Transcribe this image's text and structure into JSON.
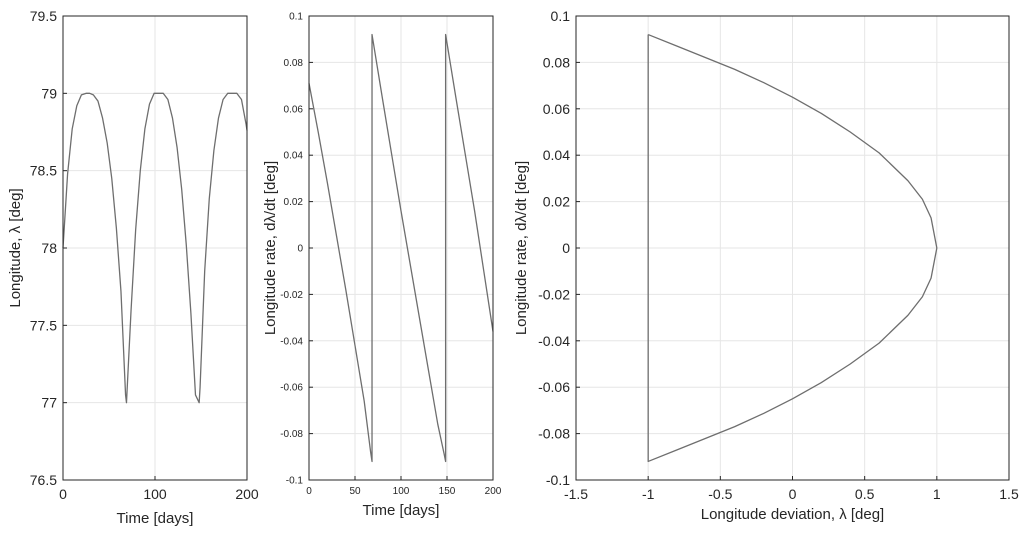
{
  "chart_data": [
    {
      "type": "line",
      "xlabel": "Time [days]",
      "ylabel": "Longitude, λ [deg]",
      "xlim": [
        0,
        200
      ],
      "ylim": [
        76.5,
        79.5
      ],
      "grid": true,
      "xticks": [
        "0",
        "100",
        "200"
      ],
      "yticks": [
        "76.5",
        "77",
        "77.5",
        "78",
        "78.5",
        "79",
        "79.5"
      ],
      "series": [
        {
          "x": [
            0,
            5,
            10,
            15,
            20,
            25,
            29,
            33,
            38,
            43,
            48,
            53,
            58,
            63,
            68,
            69,
            74,
            79,
            84,
            89,
            94,
            99,
            104,
            109,
            114,
            119,
            124,
            129,
            134,
            139,
            144,
            148,
            149,
            154,
            159,
            164,
            169,
            174,
            179,
            184,
            189,
            194,
            199,
            200
          ],
          "y": [
            78.0,
            78.48,
            78.77,
            78.92,
            78.99,
            79.0,
            79.0,
            78.99,
            78.95,
            78.84,
            78.68,
            78.45,
            78.13,
            77.72,
            77.05,
            77.0,
            77.6,
            78.12,
            78.5,
            78.77,
            78.93,
            79.0,
            79.0,
            79.0,
            78.96,
            78.84,
            78.65,
            78.38,
            78.02,
            77.58,
            77.05,
            77.0,
            77.1,
            77.85,
            78.32,
            78.63,
            78.84,
            78.96,
            79.0,
            79.0,
            79.0,
            78.96,
            78.8,
            78.76
          ]
        }
      ]
    },
    {
      "type": "line",
      "xlabel": "Time [days]",
      "ylabel": "Longitude rate, dλ/dt [deg]",
      "xlim": [
        0,
        200
      ],
      "ylim": [
        -0.1,
        0.1
      ],
      "grid": true,
      "xticks": [
        "0",
        "50",
        "100",
        "150",
        "200"
      ],
      "yticks": [
        "-0.1",
        "-0.08",
        "-0.06",
        "-0.04",
        "-0.02",
        "0",
        "0.02",
        "0.04",
        "0.06",
        "0.08",
        "0.1"
      ],
      "series": [
        {
          "x": [
            0,
            10,
            20,
            30,
            40,
            50,
            60,
            67,
            68.5,
            68.5,
            80,
            90,
            100,
            110,
            120,
            130,
            140,
            147,
            148.5,
            148.5,
            160,
            170,
            180,
            190,
            200
          ],
          "y": [
            0.071,
            0.05,
            0.028,
            0.005,
            -0.018,
            -0.042,
            -0.066,
            -0.088,
            -0.092,
            0.092,
            0.064,
            0.04,
            0.016,
            -0.007,
            -0.03,
            -0.053,
            -0.076,
            -0.089,
            -0.092,
            0.092,
            0.064,
            0.04,
            0.016,
            -0.01,
            -0.036
          ]
        }
      ]
    },
    {
      "type": "line",
      "xlabel": "Longitude deviation, λ [deg]",
      "ylabel": "Longitude rate, dλ/dt [deg]",
      "xlim": [
        -1.5,
        1.5
      ],
      "ylim": [
        -0.1,
        0.1
      ],
      "grid": true,
      "xticks": [
        "-1.5",
        "-1",
        "-0.5",
        "0",
        "0.5",
        "1",
        "1.5"
      ],
      "yticks": [
        "-0.1",
        "-0.08",
        "-0.06",
        "-0.04",
        "-0.02",
        "0",
        "0.02",
        "0.04",
        "0.06",
        "0.08",
        "0.1"
      ],
      "series": [
        {
          "x": [
            -1,
            -0.8,
            -0.6,
            -0.4,
            -0.2,
            0,
            0.2,
            0.4,
            0.6,
            0.8,
            0.9,
            0.96,
            1,
            0.96,
            0.9,
            0.8,
            0.6,
            0.4,
            0.2,
            0,
            -0.2,
            -0.4,
            -0.6,
            -0.8,
            -1,
            -1
          ],
          "y": [
            0.092,
            0.087,
            0.082,
            0.077,
            0.0713,
            0.065,
            0.058,
            0.05,
            0.041,
            0.029,
            0.021,
            0.013,
            0,
            -0.013,
            -0.021,
            -0.029,
            -0.041,
            -0.05,
            -0.058,
            -0.065,
            -0.0713,
            -0.077,
            -0.082,
            -0.087,
            -0.092,
            0.092
          ]
        }
      ]
    }
  ],
  "colors": {
    "line": "#6e6e6e",
    "grid": "#e6e6e6",
    "axes": "#262626",
    "background": "#ffffff"
  }
}
